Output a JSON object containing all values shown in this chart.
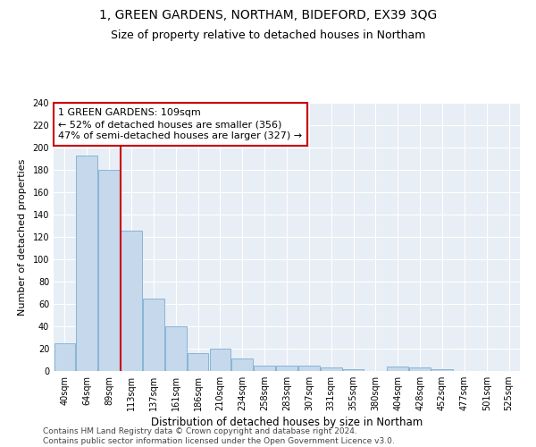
{
  "title": "1, GREEN GARDENS, NORTHAM, BIDEFORD, EX39 3QG",
  "subtitle": "Size of property relative to detached houses in Northam",
  "xlabel": "Distribution of detached houses by size in Northam",
  "ylabel": "Number of detached properties",
  "bar_labels": [
    "40sqm",
    "64sqm",
    "89sqm",
    "113sqm",
    "137sqm",
    "161sqm",
    "186sqm",
    "210sqm",
    "234sqm",
    "258sqm",
    "283sqm",
    "307sqm",
    "331sqm",
    "355sqm",
    "380sqm",
    "404sqm",
    "428sqm",
    "452sqm",
    "477sqm",
    "501sqm",
    "525sqm"
  ],
  "bar_values": [
    25,
    193,
    180,
    126,
    65,
    40,
    16,
    20,
    11,
    5,
    5,
    5,
    3,
    2,
    0,
    4,
    3,
    2,
    0,
    0,
    0
  ],
  "bar_color": "#c5d8ec",
  "bar_edgecolor": "#7aaed0",
  "vline_x_index": 2.5,
  "vline_color": "#cc0000",
  "annotation_text": "1 GREEN GARDENS: 109sqm\n← 52% of detached houses are smaller (356)\n47% of semi-detached houses are larger (327) →",
  "annotation_box_color": "#ffffff",
  "annotation_box_edgecolor": "#cc0000",
  "ylim": [
    0,
    240
  ],
  "yticks": [
    0,
    20,
    40,
    60,
    80,
    100,
    120,
    140,
    160,
    180,
    200,
    220,
    240
  ],
  "bg_color": "#e8eef5",
  "footer_text": "Contains HM Land Registry data © Crown copyright and database right 2024.\nContains public sector information licensed under the Open Government Licence v3.0.",
  "title_fontsize": 10,
  "subtitle_fontsize": 9,
  "xlabel_fontsize": 8.5,
  "ylabel_fontsize": 8,
  "tick_fontsize": 7,
  "annotation_fontsize": 8,
  "footer_fontsize": 6.5
}
